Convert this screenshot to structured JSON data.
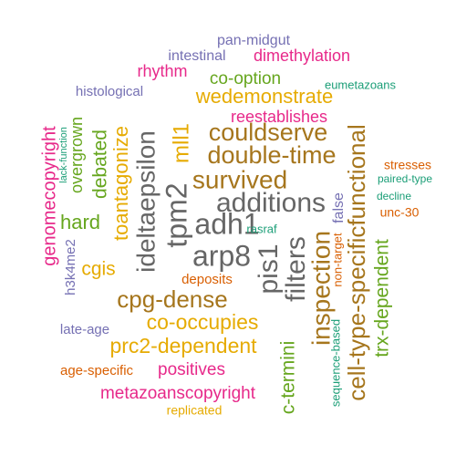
{
  "palette": {
    "teal": "#1b9e77",
    "orange": "#d95f02",
    "purple": "#7570b3",
    "magenta": "#e7298a",
    "green": "#66a61e",
    "gold": "#e6ab02",
    "brown": "#a6761d",
    "gray": "#666666"
  },
  "words": [
    {
      "text": "pan-midgut",
      "color": "purple"
    },
    {
      "text": "intestinal",
      "color": "purple"
    },
    {
      "text": "dimethylation",
      "color": "magenta"
    },
    {
      "text": "rhythm",
      "color": "magenta"
    },
    {
      "text": "co-option",
      "color": "green"
    },
    {
      "text": "eumetazoans",
      "color": "teal"
    },
    {
      "text": "histological",
      "color": "purple"
    },
    {
      "text": "wedemonstrate",
      "color": "gold"
    },
    {
      "text": "reestablishes",
      "color": "magenta"
    },
    {
      "text": "couldserve",
      "color": "brown"
    },
    {
      "text": "double-time",
      "color": "brown"
    },
    {
      "text": "survived",
      "color": "brown"
    },
    {
      "text": "additions",
      "color": "gray"
    },
    {
      "text": "adh1",
      "color": "gray"
    },
    {
      "text": "arp8",
      "color": "gray"
    },
    {
      "text": "tpm2",
      "color": "gray"
    },
    {
      "text": "mll1",
      "color": "gold"
    },
    {
      "text": "ideltaepsilon",
      "color": "gray"
    },
    {
      "text": "toantagonize",
      "color": "gold"
    },
    {
      "text": "debated",
      "color": "green"
    },
    {
      "text": "overgrown",
      "color": "green"
    },
    {
      "text": "lack-function",
      "color": "teal"
    },
    {
      "text": "genomecopyright",
      "color": "magenta"
    },
    {
      "text": "hard",
      "color": "green"
    },
    {
      "text": "h3k4me2",
      "color": "purple"
    },
    {
      "text": "cgis",
      "color": "gold"
    },
    {
      "text": "pis1",
      "color": "gray"
    },
    {
      "text": "filters",
      "color": "gray"
    },
    {
      "text": "inspection",
      "color": "brown"
    },
    {
      "text": "cell-type-specificfunctional",
      "color": "brown"
    },
    {
      "text": "trx-dependent",
      "color": "green"
    },
    {
      "text": "false",
      "color": "purple"
    },
    {
      "text": "non-target",
      "color": "orange"
    },
    {
      "text": "sequence-based",
      "color": "teal"
    },
    {
      "text": "c-termini",
      "color": "green"
    },
    {
      "text": "rasraf",
      "color": "teal"
    },
    {
      "text": "deposits",
      "color": "orange"
    },
    {
      "text": "cpg-dense",
      "color": "brown"
    },
    {
      "text": "co-occupies",
      "color": "gold"
    },
    {
      "text": "prc2-dependent",
      "color": "gold"
    },
    {
      "text": "late-age",
      "color": "purple"
    },
    {
      "text": "age-specific",
      "color": "orange"
    },
    {
      "text": "positives",
      "color": "magenta"
    },
    {
      "text": "metazoanscopyright",
      "color": "magenta"
    },
    {
      "text": "replicated",
      "color": "gold"
    },
    {
      "text": "stresses",
      "color": "orange"
    },
    {
      "text": "paired-type",
      "color": "teal"
    },
    {
      "text": "decline",
      "color": "teal"
    },
    {
      "text": "unc-30",
      "color": "orange"
    }
  ]
}
